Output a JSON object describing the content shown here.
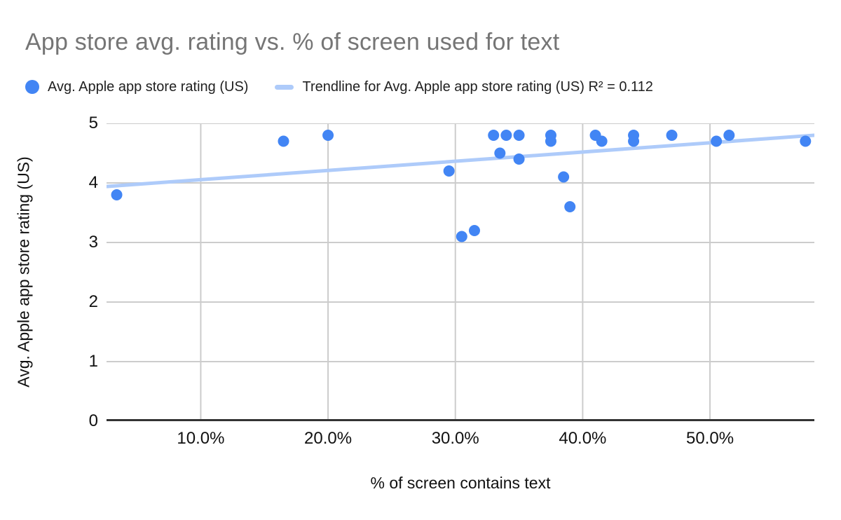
{
  "title": "App store avg. rating vs. % of screen used for text",
  "colors": {
    "series": "#4285f4",
    "trendline": "#aecbfa",
    "grid": "#cccccc",
    "axis": "#333333",
    "title_text": "#757575",
    "tick_text": "#111111"
  },
  "legend": {
    "items": [
      {
        "swatch": "dot-swatch-icon",
        "color": "#4285f4",
        "label": "Avg. Apple app store rating (US)"
      },
      {
        "swatch": "trendline-swatch-icon",
        "color": "#aecbfa",
        "label": "Trendline for Avg. Apple app store rating (US) R² = 0.112"
      }
    ]
  },
  "chart_data": {
    "type": "scatter",
    "title": "App store avg. rating vs. % of screen used for text",
    "xlabel": "% of screen contains text",
    "ylabel": "Avg. Apple app store rating (US)",
    "xlim": [
      2.6,
      58.2
    ],
    "ylim": [
      0,
      5
    ],
    "grid": true,
    "legend_position": "top",
    "x_ticks": [
      {
        "value": 10,
        "label": "10.0%"
      },
      {
        "value": 20,
        "label": "20.0%"
      },
      {
        "value": 30,
        "label": "30.0%"
      },
      {
        "value": 40,
        "label": "40.0%"
      },
      {
        "value": 50,
        "label": "50.0%"
      }
    ],
    "y_ticks": [
      {
        "value": 0,
        "label": "0"
      },
      {
        "value": 1,
        "label": "1"
      },
      {
        "value": 2,
        "label": "2"
      },
      {
        "value": 3,
        "label": "3"
      },
      {
        "value": 4,
        "label": "4"
      },
      {
        "value": 5,
        "label": "5"
      }
    ],
    "series": [
      {
        "name": "Avg. Apple app store rating (US)",
        "color": "#4285f4",
        "points": [
          [
            3.4,
            3.8
          ],
          [
            16.5,
            4.7
          ],
          [
            20.0,
            4.8
          ],
          [
            29.5,
            4.2
          ],
          [
            30.5,
            3.1
          ],
          [
            31.5,
            3.2
          ],
          [
            33.0,
            4.8
          ],
          [
            33.5,
            4.5
          ],
          [
            34.0,
            4.8
          ],
          [
            35.0,
            4.8
          ],
          [
            35.0,
            4.4
          ],
          [
            37.5,
            4.8
          ],
          [
            37.5,
            4.7
          ],
          [
            38.5,
            4.1
          ],
          [
            39.0,
            3.6
          ],
          [
            41.0,
            4.8
          ],
          [
            41.5,
            4.7
          ],
          [
            44.0,
            4.8
          ],
          [
            44.0,
            4.7
          ],
          [
            47.0,
            4.8
          ],
          [
            50.5,
            4.7
          ],
          [
            51.5,
            4.8
          ],
          [
            57.5,
            4.7
          ]
        ]
      }
    ],
    "trendline": {
      "name": "Trendline for Avg. Apple app store rating (US)",
      "r_squared": 0.112,
      "color": "#aecbfa",
      "x": [
        2.6,
        58.2
      ],
      "y": [
        3.94,
        4.8
      ]
    }
  }
}
